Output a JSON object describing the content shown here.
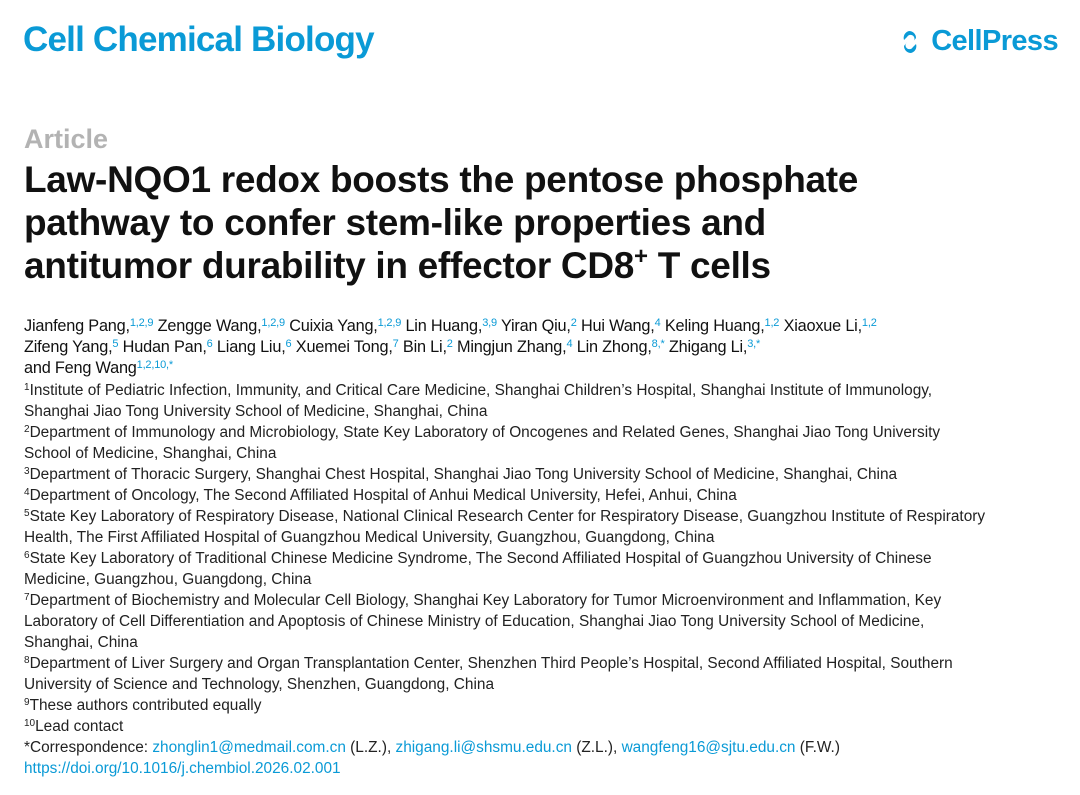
{
  "header": {
    "journal": "Cell Chemical Biology",
    "publisher": "CellPress",
    "brand_color": "#0a9ad6"
  },
  "article_type": "Article",
  "title_lines": [
    "Law-NQO1 redox boosts the pentose phosphate",
    "pathway to confer stem-like properties and",
    "antitumor durability in effector CD8"
  ],
  "title_sup": "+",
  "title_tail": " T cells",
  "authors": [
    [
      {
        "name": "Jianfeng Pang,",
        "sup": "1,2,9"
      },
      {
        "name": "Zengge Wang,",
        "sup": "1,2,9"
      },
      {
        "name": "Cuixia Yang,",
        "sup": "1,2,9"
      },
      {
        "name": "Lin Huang,",
        "sup": "3,9"
      },
      {
        "name": "Yiran Qiu,",
        "sup": "2"
      },
      {
        "name": "Hui Wang,",
        "sup": "4"
      },
      {
        "name": "Keling Huang,",
        "sup": "1,2"
      },
      {
        "name": "Xiaoxue Li,",
        "sup": "1,2"
      }
    ],
    [
      {
        "name": "Zifeng Yang,",
        "sup": "5"
      },
      {
        "name": "Hudan Pan,",
        "sup": "6"
      },
      {
        "name": "Liang Liu,",
        "sup": "6"
      },
      {
        "name": "Xuemei Tong,",
        "sup": "7"
      },
      {
        "name": "Bin Li,",
        "sup": "2"
      },
      {
        "name": "Mingjun Zhang,",
        "sup": "4"
      },
      {
        "name": "Lin Zhong,",
        "sup": "8,*"
      },
      {
        "name": "Zhigang Li,",
        "sup": "3,*"
      }
    ],
    [
      {
        "name": "and Feng Wang",
        "sup": "1,2,10,*"
      }
    ]
  ],
  "affiliations": [
    {
      "num": "1",
      "lines": [
        "Institute of Pediatric Infection, Immunity, and Critical Care Medicine, Shanghai Children’s Hospital, Shanghai Institute of Immunology,",
        "Shanghai Jiao Tong University School of Medicine, Shanghai, China"
      ]
    },
    {
      "num": "2",
      "lines": [
        "Department of Immunology and Microbiology, State Key Laboratory of Oncogenes and Related Genes, Shanghai Jiao Tong University",
        "School of Medicine, Shanghai, China"
      ]
    },
    {
      "num": "3",
      "lines": [
        "Department of Thoracic Surgery, Shanghai Chest Hospital, Shanghai Jiao Tong University School of Medicine, Shanghai, China"
      ]
    },
    {
      "num": "4",
      "lines": [
        "Department of Oncology, The Second Affiliated Hospital of Anhui Medical University, Hefei, Anhui, China"
      ]
    },
    {
      "num": "5",
      "lines": [
        "State Key Laboratory of Respiratory Disease, National Clinical Research Center for Respiratory Disease, Guangzhou Institute of Respiratory",
        "Health, The First Affiliated Hospital of Guangzhou Medical University, Guangzhou, Guangdong, China"
      ]
    },
    {
      "num": "6",
      "lines": [
        "State Key Laboratory of Traditional Chinese Medicine Syndrome, The Second Affiliated Hospital of Guangzhou University of Chinese",
        "Medicine, Guangzhou, Guangdong, China"
      ]
    },
    {
      "num": "7",
      "lines": [
        "Department of Biochemistry and Molecular Cell Biology, Shanghai Key Laboratory for Tumor Microenvironment and Inflammation, Key",
        "Laboratory of Cell Differentiation and Apoptosis of Chinese Ministry of Education, Shanghai Jiao Tong University School of Medicine,",
        "Shanghai, China"
      ]
    },
    {
      "num": "8",
      "lines": [
        "Department of Liver Surgery and Organ Transplantation Center, Shenzhen Third People’s Hospital, Second Affiliated Hospital, Southern",
        "University of Science and Technology, Shenzhen, Guangdong, China"
      ]
    },
    {
      "num": "9",
      "lines": [
        "These authors contributed equally"
      ]
    },
    {
      "num": "10",
      "lines": [
        "Lead contact"
      ]
    }
  ],
  "correspondence": {
    "label": "*Correspondence: ",
    "entries": [
      {
        "email": "zhonglin1@medmail.com.cn",
        "who": " (L.Z.), "
      },
      {
        "email": "zhigang.li@shsmu.edu.cn",
        "who": " (Z.L.), "
      },
      {
        "email": "wangfeng16@sjtu.edu.cn",
        "who": " (F.W.)"
      }
    ]
  },
  "doi": "https://doi.org/10.1016/j.chembiol.2026.02.001"
}
